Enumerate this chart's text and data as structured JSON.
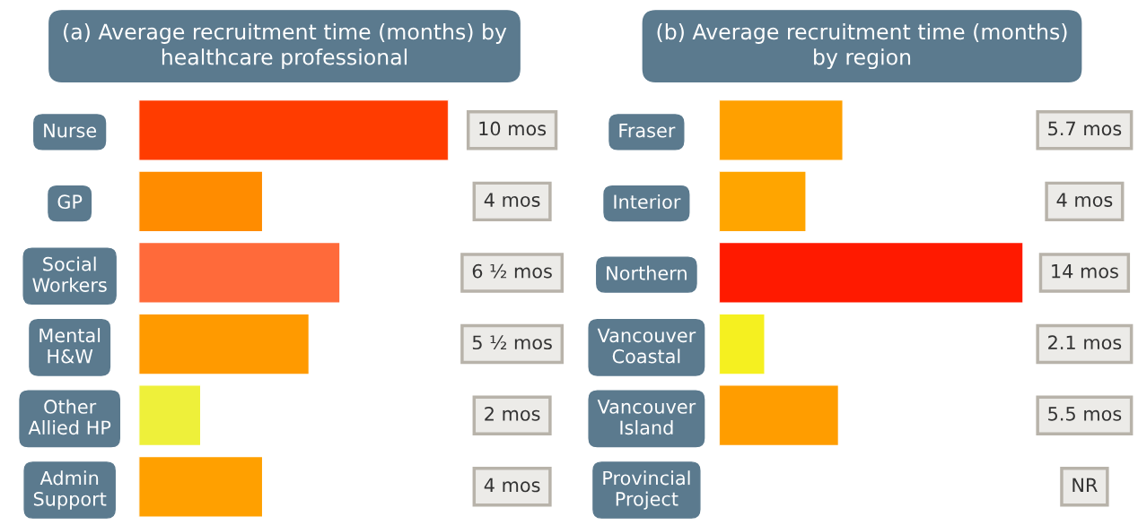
{
  "chart_data": [
    {
      "type": "bar",
      "orientation": "horizontal",
      "title": "(a) Average recruitment time (months) by\nhealthcare professional",
      "categories": [
        "Nurse",
        "GP",
        "Social\nWorkers",
        "Mental\nH&W",
        "Other\nAllied HP",
        "Admin\nSupport"
      ],
      "values": [
        10,
        4,
        6.5,
        5.5,
        2,
        4
      ],
      "value_labels": [
        "10 mos",
        "4 mos",
        "6 ½ mos",
        "5 ½ mos",
        "2 mos",
        "4 mos"
      ],
      "colors": [
        "#ff3c00",
        "#ff8c00",
        "#ff6a3a",
        "#ff9a00",
        "#eef03a",
        "#ffa000"
      ],
      "grid": false,
      "legend": false
    },
    {
      "type": "bar",
      "orientation": "horizontal",
      "title": "(b) Average recruitment time (months)\nby region",
      "categories": [
        "Fraser",
        "Interior",
        "Northern",
        "Vancouver\nCoastal",
        "Vancouver\nIsland",
        "Provincial\nProject"
      ],
      "values": [
        5.7,
        4,
        14,
        2.1,
        5.5,
        null
      ],
      "value_labels": [
        "5.7 mos",
        "4 mos",
        "14 mos",
        "2.1 mos",
        "5.5 mos",
        "NR"
      ],
      "colors": [
        "#ffa000",
        "#ffa500",
        "#ff1a00",
        "#f5f020",
        "#ff9d00",
        "#cccccc"
      ],
      "grid": false,
      "legend": false
    }
  ]
}
